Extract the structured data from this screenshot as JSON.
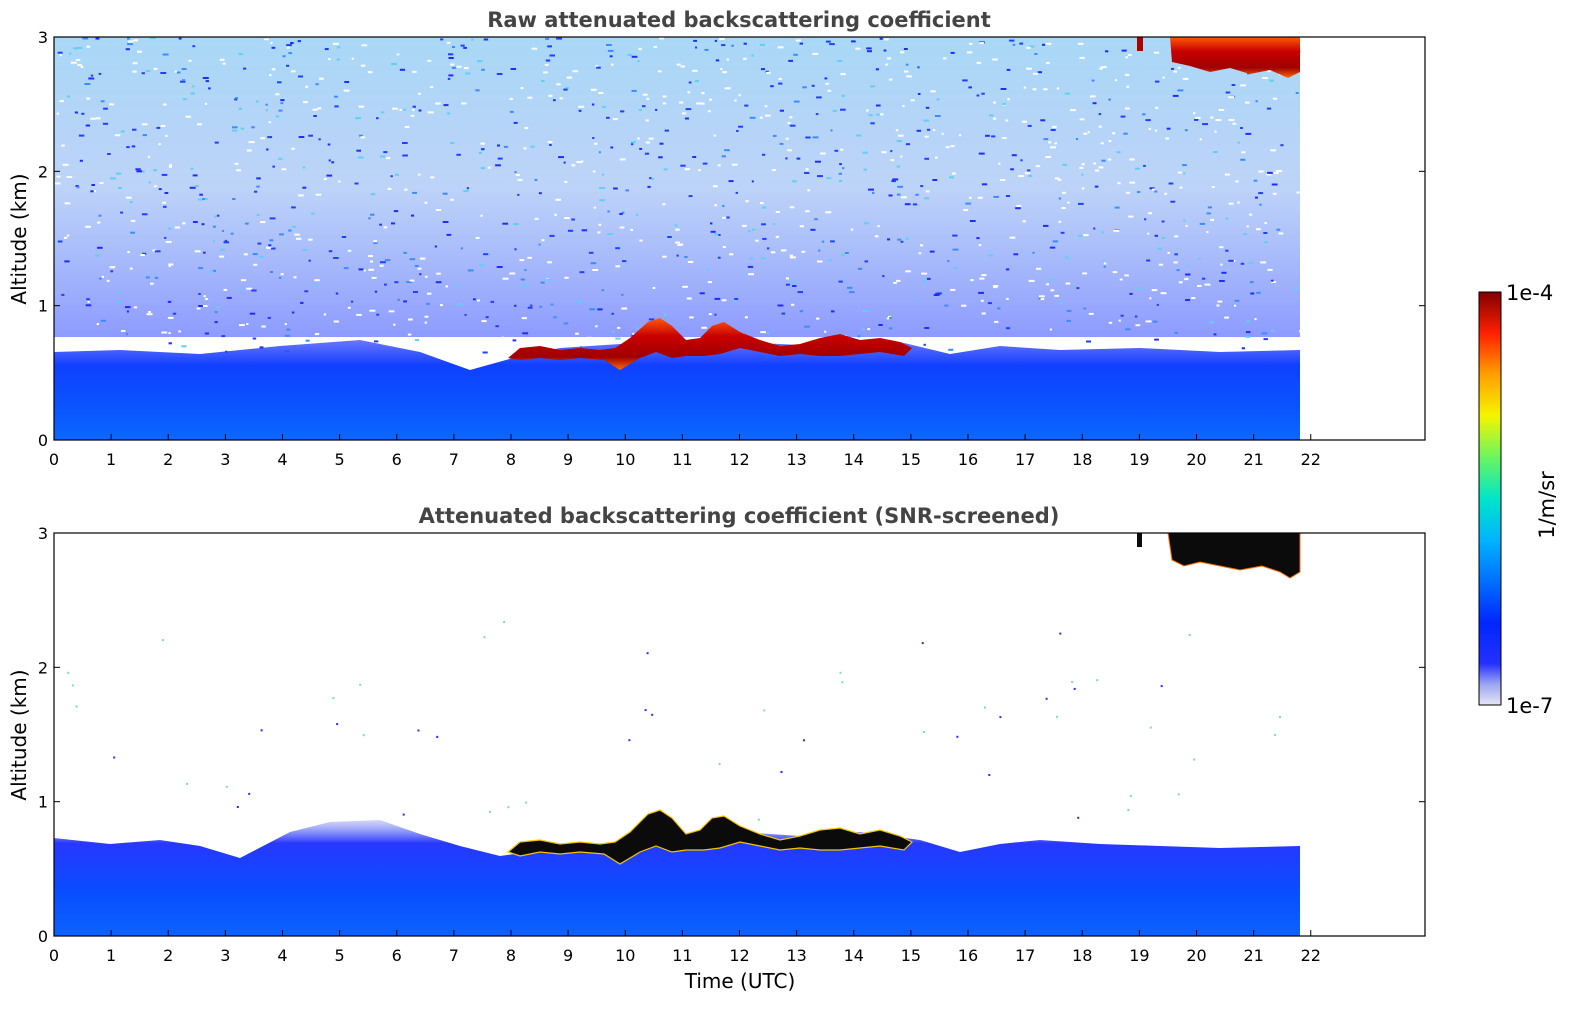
{
  "chart_data": [
    {
      "type": "heatmap",
      "title": "Raw attenuated backscattering coefficient",
      "xlabel": "",
      "ylabel": "Altitude (km)",
      "xlim": [
        0,
        24
      ],
      "ylim": [
        0,
        3
      ],
      "x_ticks": [
        "0",
        "1",
        "2",
        "3",
        "4",
        "5",
        "6",
        "7",
        "8",
        "9",
        "10",
        "11",
        "12",
        "13",
        "14",
        "15",
        "16",
        "17",
        "18",
        "19",
        "20",
        "21",
        "22"
      ],
      "y_ticks": [
        "0",
        "1",
        "2",
        "3"
      ],
      "data_time_range_utc": [
        0,
        21.8
      ],
      "features": [
        {
          "name": "boundary layer aerosol",
          "time_range": [
            0,
            21.8
          ],
          "top_altitude_km": 0.6
        },
        {
          "name": "low cloud",
          "time_range": [
            8,
            15.2
          ],
          "altitude_range_km": [
            0.55,
            0.9
          ]
        },
        {
          "name": "high cloud",
          "time_range": [
            19,
            21.8
          ],
          "altitude_range_km": [
            2.7,
            3.0
          ]
        },
        {
          "name": "noise",
          "time_range": [
            0,
            21.8
          ],
          "altitude_range_km": [
            0.6,
            3.0
          ]
        }
      ]
    },
    {
      "type": "heatmap",
      "title": "Attenuated backscattering coefficient (SNR-screened)",
      "xlabel": "Time (UTC)",
      "ylabel": "Altitude (km)",
      "xlim": [
        0,
        24
      ],
      "ylim": [
        0,
        3
      ],
      "x_ticks": [
        "0",
        "1",
        "2",
        "3",
        "4",
        "5",
        "6",
        "7",
        "8",
        "9",
        "10",
        "11",
        "12",
        "13",
        "14",
        "15",
        "16",
        "17",
        "18",
        "19",
        "20",
        "21",
        "22"
      ],
      "y_ticks": [
        "0",
        "1",
        "2",
        "3"
      ],
      "data_time_range_utc": [
        0,
        21.8
      ],
      "features": [
        {
          "name": "boundary layer aerosol",
          "time_range": [
            0,
            21.8
          ],
          "top_altitude_km": 0.85
        },
        {
          "name": "low cloud",
          "time_range": [
            8,
            15.2
          ],
          "altitude_range_km": [
            0.55,
            0.95
          ]
        },
        {
          "name": "high cloud",
          "time_range": [
            19,
            21.8
          ],
          "altitude_range_km": [
            2.65,
            3.0
          ]
        }
      ]
    }
  ],
  "colorbar": {
    "label": "1/m/sr",
    "max_label": "1e-4",
    "min_label": "1e-7",
    "scale": "log",
    "range": [
      1e-07,
      0.0001
    ]
  },
  "colors": {
    "title": "#444444",
    "aerosol": "#1a44ff",
    "cloud": "#b80000",
    "cloud_saturated": "#000000"
  }
}
